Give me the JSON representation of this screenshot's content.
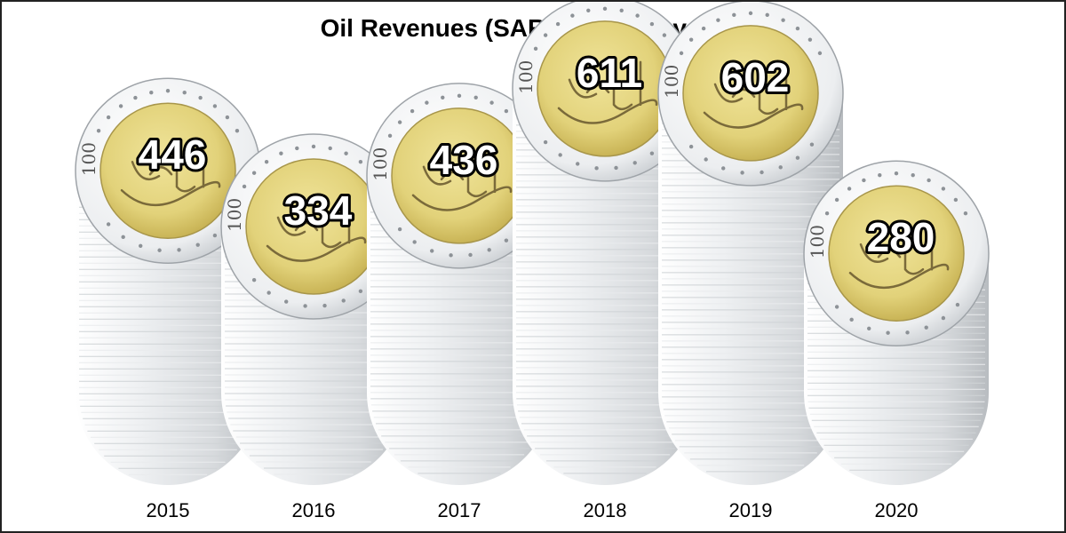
{
  "chart_data": {
    "type": "bar",
    "title": "Oil Revenues (SAR Billions) by Year",
    "categories": [
      "2015",
      "2016",
      "2017",
      "2018",
      "2019",
      "2020"
    ],
    "values": [
      446,
      334,
      436,
      611,
      602,
      280
    ],
    "value_labels": [
      "446",
      "334",
      "436",
      "611",
      "602",
      "280"
    ],
    "xlabel": "",
    "ylabel": "",
    "ylim": [
      0,
      611
    ],
    "grid": false,
    "legend": "none",
    "mark_style": "stacked-coin-columns",
    "coin_denomination_text": "100",
    "colors": {
      "coin_center": "#e2d27a",
      "coin_center_edge": "#c9b456",
      "coin_rim": "#f1f2f3",
      "stack_light": "#fbfbfc",
      "stack_dark": "#b8bcc0",
      "label_fill": "#ffffff",
      "label_stroke": "#000000"
    }
  }
}
